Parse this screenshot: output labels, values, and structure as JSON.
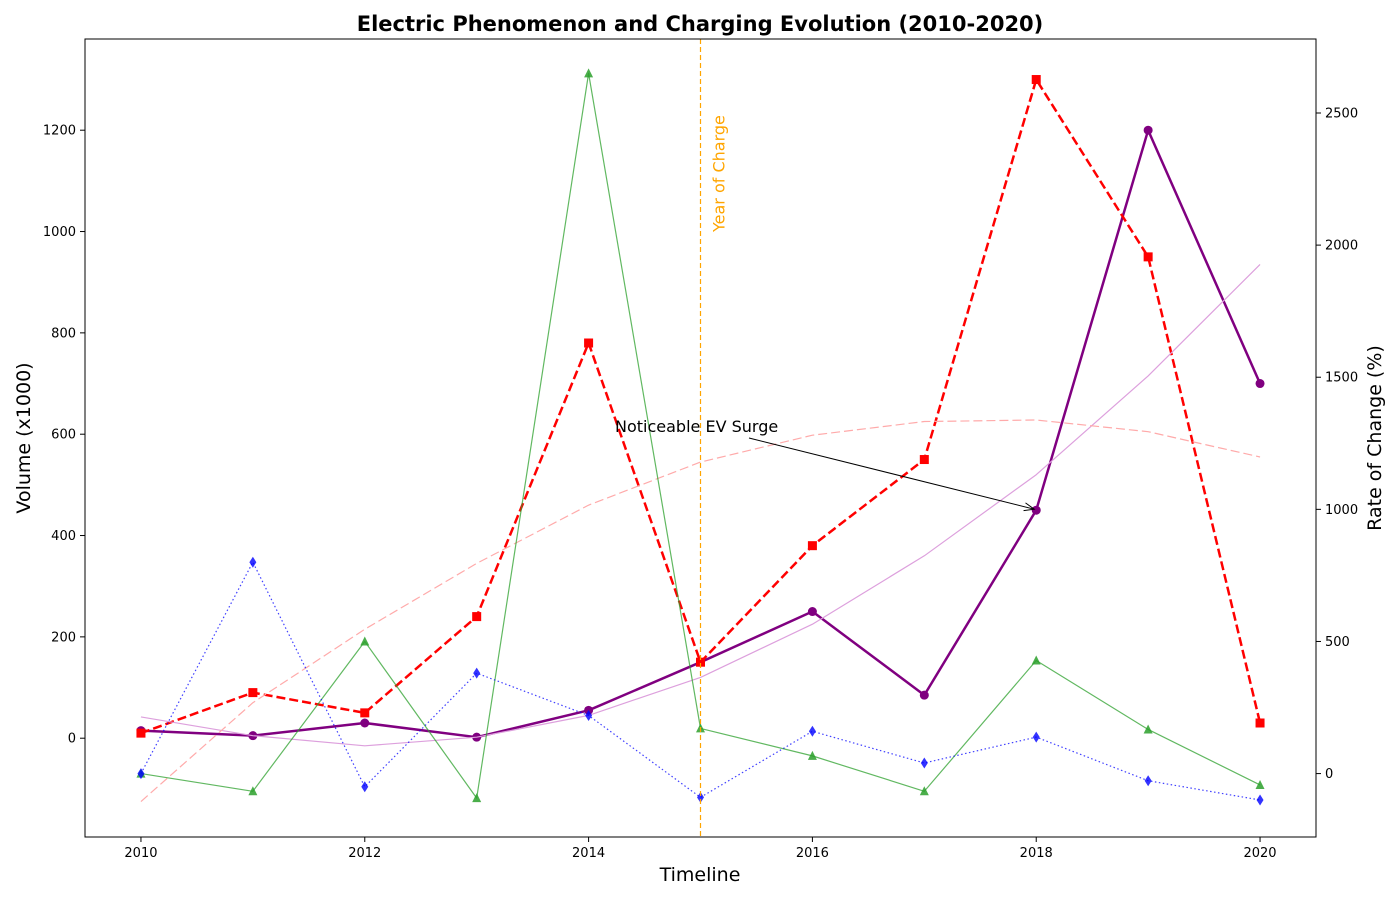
{
  "chart_data": {
    "type": "line",
    "title": "Electric Phenomenon and Charging Evolution (2010-2020)",
    "xlabel": "Timeline",
    "ylabel": "Volume (x1000)",
    "ylabel_right": "Rate of Change (%)",
    "x": [
      2010,
      2011,
      2012,
      2013,
      2014,
      2015,
      2016,
      2017,
      2018,
      2019,
      2020
    ],
    "xlim": [
      2009.5,
      2020.5
    ],
    "ylim": [
      -195,
      1380
    ],
    "ylim_right": [
      -240,
      2780
    ],
    "x_ticks": [
      2010,
      2012,
      2014,
      2016,
      2018,
      2020
    ],
    "y_ticks": [
      0,
      200,
      400,
      600,
      800,
      1000,
      1200
    ],
    "y_ticks_right": [
      0,
      500,
      1000,
      1500,
      2000,
      2500
    ],
    "grid": false,
    "legend": "none",
    "series": [
      {
        "axis": "left",
        "color": "#800080",
        "style": "solid",
        "width": 2.5,
        "marker": "circle",
        "values": [
          15,
          5,
          30,
          2,
          55,
          150,
          250,
          85,
          450,
          1200,
          700
        ]
      },
      {
        "axis": "left",
        "color": "#ff0000",
        "style": "dashed",
        "width": 2.5,
        "marker": "square",
        "values": [
          10,
          90,
          50,
          240,
          780,
          150,
          380,
          550,
          1300,
          950,
          30
        ]
      },
      {
        "axis": "left",
        "color": "#dda0dd",
        "style": "solid",
        "width": 1.2,
        "marker": "none",
        "values": [
          42,
          5,
          -15,
          2,
          45,
          120,
          225,
          360,
          520,
          715,
          935
        ]
      },
      {
        "axis": "left",
        "color": "#ffaaaa",
        "style": "dashed",
        "width": 1.2,
        "marker": "none",
        "values": [
          -125,
          70,
          215,
          345,
          460,
          545,
          598,
          625,
          628,
          605,
          555
        ]
      },
      {
        "axis": "right",
        "color": "#2ca02c",
        "style": "solid",
        "width": 1.2,
        "marker": "triangle",
        "values": [
          0,
          -67,
          500,
          -93,
          2650,
          171,
          67,
          -67,
          428,
          167,
          -43
        ]
      },
      {
        "axis": "right",
        "color": "#0000ff",
        "style": "dotted",
        "width": 1.2,
        "marker": "diamond",
        "values": [
          0,
          800,
          -50,
          380,
          220,
          -90,
          160,
          40,
          138,
          -27,
          -100
        ]
      }
    ],
    "vline": {
      "x": 2015,
      "color": "#ffa500",
      "label": "Year of Charge"
    },
    "annotation": {
      "text": "Noticeable EV Surge",
      "x": 2018,
      "y": 450
    }
  }
}
